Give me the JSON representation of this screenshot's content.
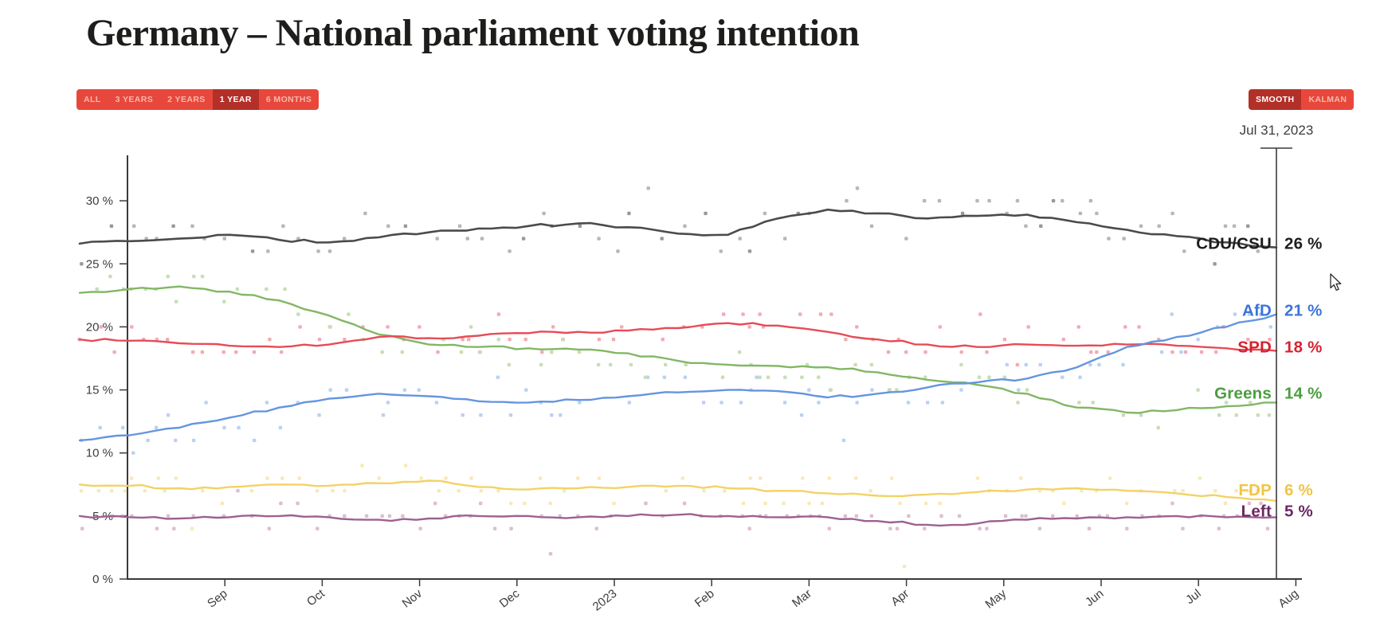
{
  "title": "Germany – National parliament voting intention",
  "range_selector": {
    "options": [
      "ALL",
      "3 YEARS",
      "2 YEARS",
      "1 YEAR",
      "6 MONTHS"
    ],
    "selected": "1 YEAR"
  },
  "smoothing_selector": {
    "options": [
      "SMOOTH",
      "KALMAN"
    ],
    "selected": "SMOOTH"
  },
  "colors": {
    "button_bg": "#e8483c",
    "button_bg_selected": "#b23028",
    "button_text": "#f6b8ae",
    "button_text_selected": "#ffffff",
    "axis_text": "#3d3d3d",
    "axis_line": "#3a3a3a",
    "cursor_line": "#3a3a3a",
    "title_text": "#1d1d1b"
  },
  "chart_data": {
    "type": "line",
    "title": "Germany – National parliament voting intention",
    "cursor_date_label": "Jul 31, 2023",
    "x_tick_labels": [
      "Sep",
      "Oct",
      "Nov",
      "Dec",
      "2023",
      "Feb",
      "Mar",
      "Apr",
      "May",
      "Jun",
      "Jul",
      "Aug"
    ],
    "y_ticks": [
      0,
      5,
      10,
      15,
      20,
      25,
      30
    ],
    "y_tick_labels": [
      "0 %",
      "5 %",
      "10 %",
      "15 %",
      "20 %",
      "25 %",
      "30 %"
    ],
    "ylim": [
      0,
      33.6
    ],
    "sample_step_months": 0.5,
    "grid": false,
    "legend_position": "right-edge-labels",
    "series": [
      {
        "name": "CDU/CSU",
        "end_label": "CDU/CSU",
        "end_value_label": "26 %",
        "line_color": "#4b4b4b",
        "dot_color": "#b0b0b0",
        "dot_color_alt": "#8f8f8f",
        "label_color": "#1d1d1d",
        "jitter": 1.8,
        "label_dy": -5,
        "values": [
          26.6,
          26.8,
          27.0,
          27.3,
          26.9,
          26.7,
          27.1,
          27.5,
          27.8,
          28.0,
          28.2,
          27.9,
          27.4,
          27.3,
          28.6,
          29.3,
          29.0,
          28.6,
          28.8,
          28.9,
          28.3,
          27.7,
          27.2,
          26.7,
          26.3
        ]
      },
      {
        "name": "AfD",
        "end_label": "AfD",
        "end_value_label": "21 %",
        "line_color": "#6495e0",
        "dot_color": "#b4cdf2",
        "label_color": "#3b74d9",
        "jitter": 1.5,
        "label_dy": -5,
        "values": [
          11.0,
          11.4,
          12.0,
          12.8,
          13.6,
          14.3,
          14.7,
          14.5,
          14.1,
          14.0,
          14.2,
          14.5,
          14.8,
          15.0,
          14.9,
          14.4,
          14.7,
          15.2,
          15.6,
          15.9,
          16.8,
          18.4,
          19.2,
          20.0,
          21.0
        ]
      },
      {
        "name": "SPD",
        "end_label": "SPD",
        "end_value_label": "18 %",
        "line_color": "#e64c57",
        "dot_color": "#f2a3ab",
        "label_color": "#d6222f",
        "jitter": 1.3,
        "label_dy": -5,
        "values": [
          19.0,
          18.9,
          18.7,
          18.5,
          18.4,
          18.6,
          19.2,
          19.1,
          19.3,
          19.5,
          19.6,
          19.7,
          19.9,
          20.3,
          20.1,
          19.6,
          19.0,
          18.6,
          18.4,
          18.6,
          18.5,
          18.6,
          18.5,
          18.3,
          18.1
        ]
      },
      {
        "name": "Greens",
        "end_label": "Greens",
        "end_value_label": "14 %",
        "line_color": "#82b765",
        "dot_color": "#c0dcae",
        "label_color": "#4b9d3f",
        "jitter": 1.3,
        "label_dy": -12,
        "values": [
          22.7,
          23.0,
          23.2,
          22.8,
          22.1,
          20.9,
          19.4,
          18.6,
          18.4,
          18.3,
          18.2,
          17.9,
          17.3,
          17.0,
          16.9,
          16.8,
          16.4,
          15.8,
          15.4,
          14.7,
          13.6,
          13.2,
          13.4,
          13.7,
          14.0
        ]
      },
      {
        "name": "FDP",
        "end_label": "FDP",
        "end_value_label": "6 %",
        "line_color": "#f3d266",
        "dot_color": "#f8e7b1",
        "label_color": "#f0c545",
        "jitter": 1.1,
        "label_dy": -14,
        "outlier_dot": {
          "x": 1135,
          "value": 1
        },
        "values": [
          7.5,
          7.4,
          7.2,
          7.3,
          7.5,
          7.4,
          7.6,
          7.8,
          7.3,
          7.1,
          7.2,
          7.3,
          7.4,
          7.2,
          7.0,
          6.8,
          6.6,
          6.7,
          6.9,
          7.1,
          7.2,
          7.0,
          6.8,
          6.5,
          6.2
        ]
      },
      {
        "name": "Left",
        "end_label": "Left",
        "end_value_label": "5 %",
        "line_color": "#9d6191",
        "dot_color": "#d9b7d1",
        "label_color": "#6e2762",
        "jitter": 0.8,
        "label_dy": -8,
        "values": [
          5.0,
          4.9,
          4.8,
          4.9,
          5.0,
          4.9,
          4.7,
          4.8,
          5.0,
          5.0,
          4.9,
          5.0,
          5.1,
          5.0,
          4.9,
          4.9,
          4.6,
          4.3,
          4.4,
          4.7,
          4.8,
          4.9,
          5.0,
          4.9,
          4.9
        ]
      }
    ]
  }
}
